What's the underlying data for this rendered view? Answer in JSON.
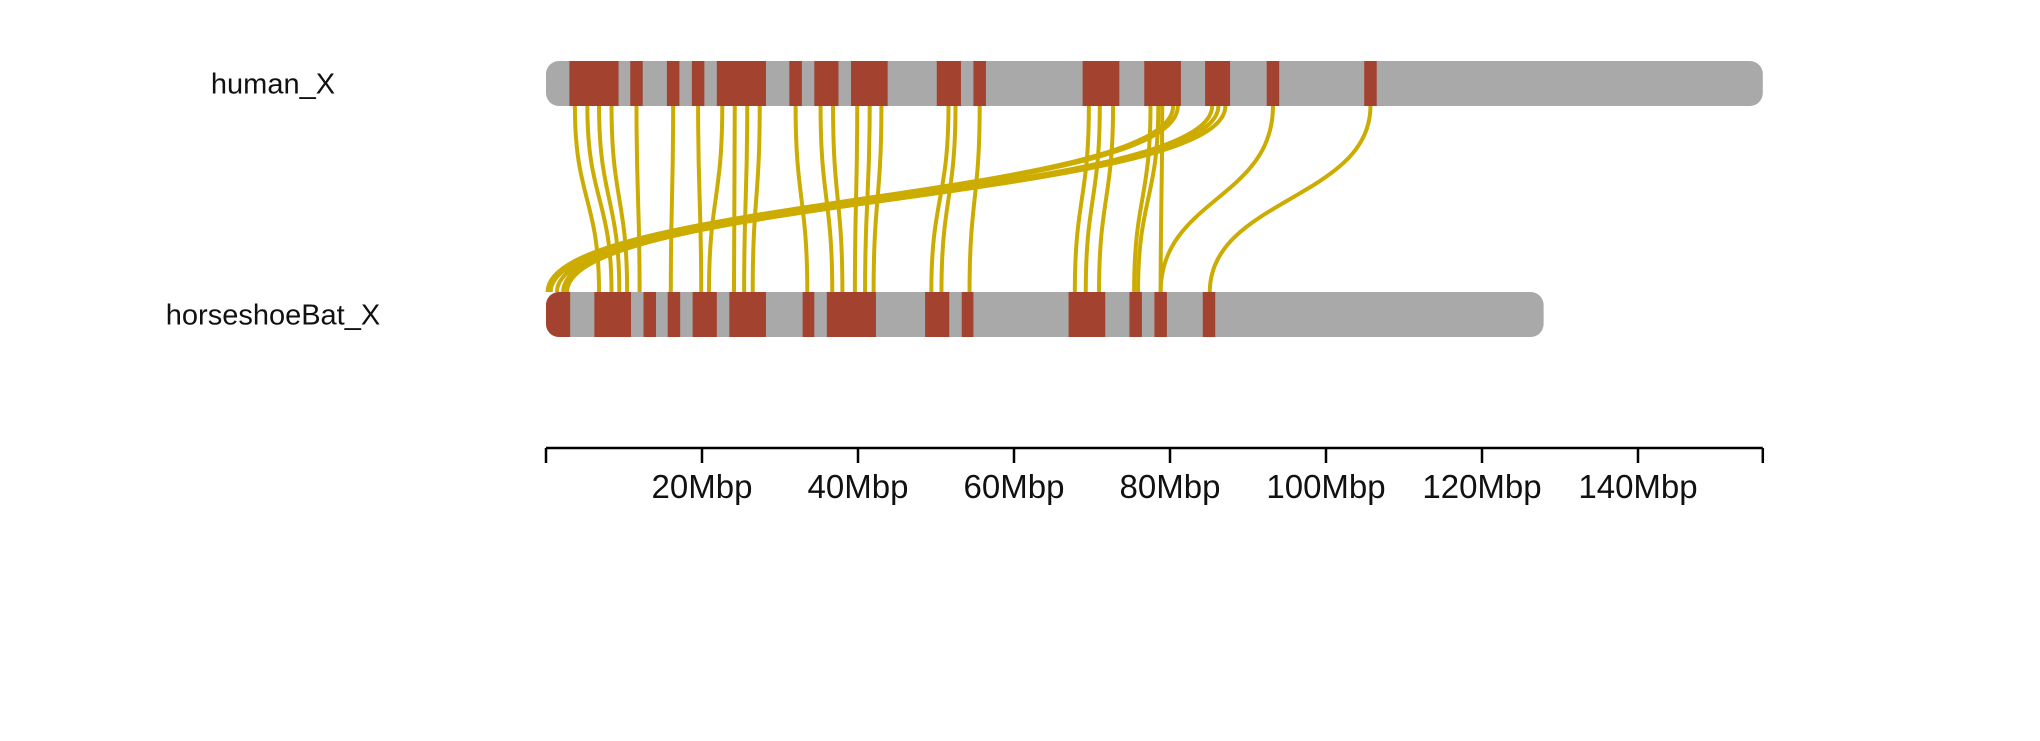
{
  "colors": {
    "chromosome": "#a9a9a9",
    "block": "#a3422f",
    "link": "#ccac00",
    "axis": "#000000",
    "text": "#111111"
  },
  "chromosomes": [
    {
      "id": "human",
      "label": "human_X",
      "length_mbp": 156,
      "blocks_mbp": [
        [
          3.0,
          9.3
        ],
        [
          10.8,
          12.4
        ],
        [
          15.5,
          17.1
        ],
        [
          18.7,
          20.3
        ],
        [
          21.9,
          28.2
        ],
        [
          31.2,
          32.8
        ],
        [
          34.4,
          37.5
        ],
        [
          39.1,
          43.8
        ],
        [
          50.1,
          53.2
        ],
        [
          54.8,
          56.4
        ],
        [
          68.8,
          73.5
        ],
        [
          76.7,
          81.4
        ],
        [
          84.5,
          87.7
        ],
        [
          92.4,
          94.0
        ],
        [
          104.9,
          106.5
        ]
      ]
    },
    {
      "id": "horseshoeBat",
      "label": "horseshoeBat_X",
      "length_mbp": 127.9,
      "blocks_mbp": [
        [
          0.0,
          3.1
        ],
        [
          6.2,
          10.9
        ],
        [
          12.5,
          14.1
        ],
        [
          15.6,
          17.2
        ],
        [
          18.8,
          21.9
        ],
        [
          23.5,
          28.2
        ],
        [
          32.9,
          34.4
        ],
        [
          36.0,
          42.3
        ],
        [
          48.6,
          51.7
        ],
        [
          53.3,
          54.8
        ],
        [
          67.0,
          71.7
        ],
        [
          74.8,
          76.4
        ],
        [
          78.0,
          79.6
        ],
        [
          84.2,
          85.8
        ]
      ]
    }
  ],
  "links_mbp": [
    [
      3.7,
      6.8
    ],
    [
      5.3,
      8.4
    ],
    [
      6.8,
      9.4
    ],
    [
      8.4,
      10.4
    ],
    [
      11.6,
      12.0
    ],
    [
      16.3,
      16.0
    ],
    [
      19.5,
      19.9
    ],
    [
      22.6,
      20.9
    ],
    [
      24.2,
      24.1
    ],
    [
      25.8,
      25.4
    ],
    [
      27.4,
      26.5
    ],
    [
      32.0,
      33.5
    ],
    [
      35.2,
      36.7
    ],
    [
      36.8,
      38.0
    ],
    [
      39.9,
      39.6
    ],
    [
      41.5,
      40.9
    ],
    [
      43.0,
      42.0
    ],
    [
      51.6,
      49.4
    ],
    [
      52.5,
      50.7
    ],
    [
      55.6,
      54.3
    ],
    [
      69.6,
      67.8
    ],
    [
      71.0,
      69.2
    ],
    [
      72.7,
      70.9
    ],
    [
      77.5,
      75.4
    ],
    [
      78.5,
      75.9
    ],
    [
      79.0,
      78.8
    ],
    [
      80.4,
      0.2
    ],
    [
      81.0,
      2.2
    ],
    [
      85.4,
      0.6
    ],
    [
      86.2,
      1.4
    ],
    [
      87.1,
      2.7
    ],
    [
      93.2,
      78.8
    ],
    [
      105.7,
      85.1
    ]
  ],
  "axis": {
    "min_mbp": 0,
    "max_mbp": 156,
    "ticks_mbp": [
      0,
      20,
      40,
      60,
      80,
      100,
      120,
      140,
      156
    ],
    "tick_labels": [
      {
        "value": 20,
        "label": "20Mbp"
      },
      {
        "value": 40,
        "label": "40Mbp"
      },
      {
        "value": 60,
        "label": "60Mbp"
      },
      {
        "value": 80,
        "label": "80Mbp"
      },
      {
        "value": 100,
        "label": "100Mbp"
      },
      {
        "value": 120,
        "label": "120Mbp"
      },
      {
        "value": 140,
        "label": "140Mbp"
      }
    ]
  }
}
